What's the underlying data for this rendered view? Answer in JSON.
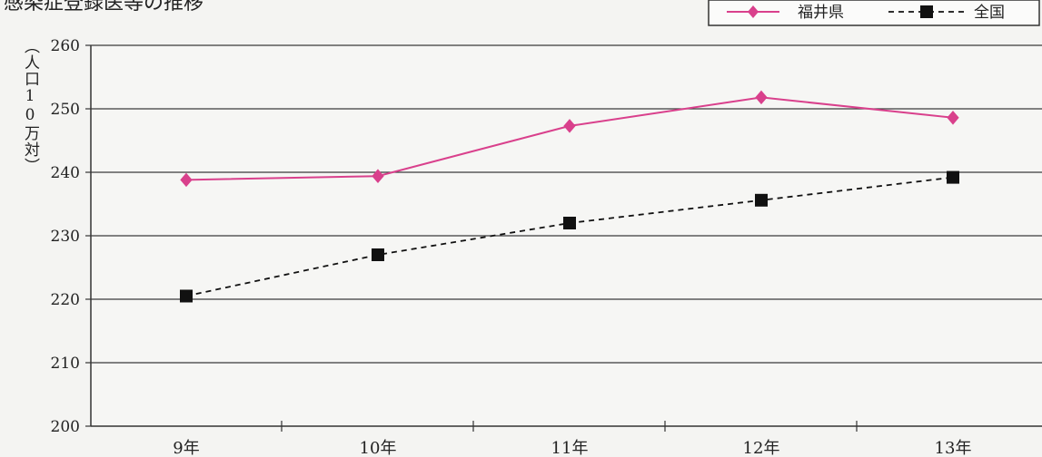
{
  "chart_data": {
    "type": "line",
    "title": "感染症登録医等の推移",
    "ylabel": "（人口10万対）",
    "xlabel": "",
    "categories": [
      "9年",
      "10年",
      "11年",
      "12年",
      "13年"
    ],
    "ylim": [
      200,
      260
    ],
    "yticks": [
      200,
      210,
      220,
      230,
      240,
      250,
      260
    ],
    "grid": true,
    "legend_position": "top-right",
    "series": [
      {
        "name": "福井県",
        "values": [
          238.8,
          239.4,
          247.3,
          251.8,
          248.6
        ],
        "color": "#d9408c",
        "line_style": "solid",
        "marker": "diamond"
      },
      {
        "name": "全国",
        "values": [
          220.5,
          227.0,
          232.0,
          235.6,
          239.2
        ],
        "color": "#111111",
        "line_style": "dashed",
        "marker": "square"
      }
    ]
  }
}
